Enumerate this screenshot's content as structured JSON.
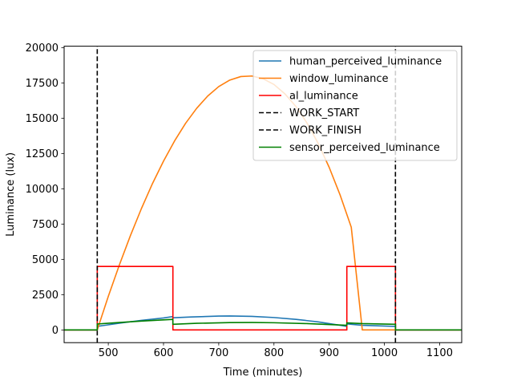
{
  "chart_data": {
    "type": "line",
    "title": "",
    "xlabel": "Time (minutes)",
    "ylabel": "Luminance (lux)",
    "xlim": [
      420,
      1140
    ],
    "ylim": [
      -900,
      20100
    ],
    "xticks": [
      500,
      600,
      700,
      800,
      900,
      1000,
      1100
    ],
    "yticks": [
      0,
      2500,
      5000,
      7500,
      10000,
      12500,
      15000,
      17500,
      20000
    ],
    "grid": false,
    "legend_position": "top-right",
    "series": [
      {
        "name": "human_perceived_luminance",
        "color": "#1f77b4",
        "style": "solid",
        "points": [
          [
            420,
            0
          ],
          [
            480,
            0
          ],
          [
            480,
            250
          ],
          [
            520,
            480
          ],
          [
            560,
            680
          ],
          [
            600,
            850
          ],
          [
            617,
            950
          ],
          [
            617,
            860
          ],
          [
            650,
            920
          ],
          [
            700,
            980
          ],
          [
            720,
            990
          ],
          [
            760,
            960
          ],
          [
            800,
            880
          ],
          [
            840,
            750
          ],
          [
            880,
            570
          ],
          [
            920,
            330
          ],
          [
            932,
            250
          ],
          [
            932,
            430
          ],
          [
            960,
            330
          ],
          [
            1020,
            250
          ],
          [
            1020,
            0
          ],
          [
            1140,
            0
          ]
        ]
      },
      {
        "name": "window_luminance",
        "color": "#ff7f0e",
        "style": "solid",
        "points": [
          [
            420,
            0
          ],
          [
            480,
            0
          ],
          [
            500,
            2380
          ],
          [
            520,
            4600
          ],
          [
            540,
            6680
          ],
          [
            560,
            8600
          ],
          [
            580,
            10370
          ],
          [
            600,
            11960
          ],
          [
            620,
            13390
          ],
          [
            640,
            14640
          ],
          [
            660,
            15700
          ],
          [
            680,
            16570
          ],
          [
            700,
            17240
          ],
          [
            720,
            17700
          ],
          [
            740,
            17950
          ],
          [
            760,
            17990
          ],
          [
            780,
            17800
          ],
          [
            800,
            17390
          ],
          [
            820,
            16720
          ],
          [
            840,
            15820
          ],
          [
            860,
            14650
          ],
          [
            880,
            13220
          ],
          [
            900,
            11520
          ],
          [
            920,
            9540
          ],
          [
            940,
            7280
          ],
          [
            960,
            0
          ],
          [
            1140,
            0
          ]
        ]
      },
      {
        "name": "al_luminance",
        "color": "#ff0000",
        "style": "solid",
        "points": [
          [
            420,
            0
          ],
          [
            480,
            0
          ],
          [
            480,
            4500
          ],
          [
            617,
            4500
          ],
          [
            617,
            0
          ],
          [
            932,
            0
          ],
          [
            932,
            4500
          ],
          [
            1020,
            4500
          ],
          [
            1020,
            0
          ],
          [
            1140,
            0
          ]
        ]
      },
      {
        "name": "WORK_START",
        "color": "#000000",
        "style": "dashed",
        "points": [
          [
            480,
            -900
          ],
          [
            480,
            20100
          ]
        ]
      },
      {
        "name": "WORK_FINISH",
        "color": "#000000",
        "style": "dashed",
        "points": [
          [
            1020,
            -900
          ],
          [
            1020,
            20100
          ]
        ]
      },
      {
        "name": "sensor_perceived_luminance",
        "color": "#008000",
        "style": "solid",
        "points": [
          [
            420,
            0
          ],
          [
            480,
            0
          ],
          [
            480,
            420
          ],
          [
            520,
            530
          ],
          [
            560,
            630
          ],
          [
            600,
            710
          ],
          [
            617,
            750
          ],
          [
            617,
            400
          ],
          [
            660,
            470
          ],
          [
            720,
            520
          ],
          [
            760,
            530
          ],
          [
            800,
            510
          ],
          [
            860,
            450
          ],
          [
            932,
            330
          ],
          [
            932,
            500
          ],
          [
            960,
            450
          ],
          [
            1020,
            400
          ],
          [
            1020,
            0
          ],
          [
            1140,
            0
          ]
        ]
      }
    ]
  }
}
